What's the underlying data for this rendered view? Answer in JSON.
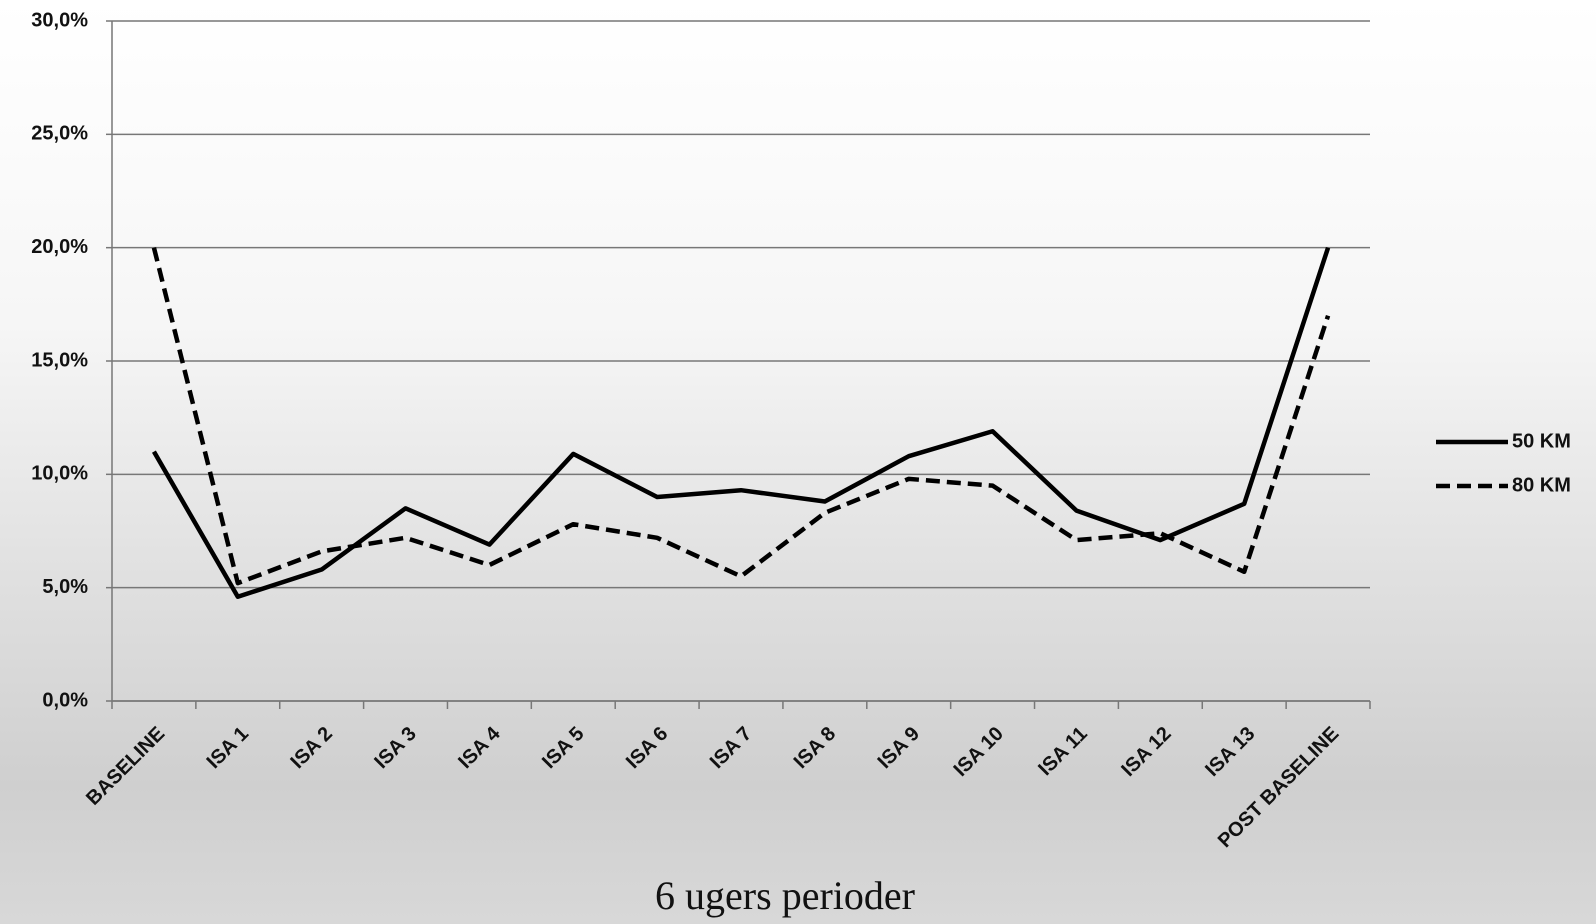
{
  "chart_data": {
    "type": "line",
    "x_label": "6 ugers perioder",
    "categories": [
      "BASELINE",
      "ISA 1",
      "ISA 2",
      "ISA 3",
      "ISA 4",
      "ISA 5",
      "ISA 6",
      "ISA 7",
      "ISA 8",
      "ISA 9",
      "ISA 10",
      "ISA 11",
      "ISA 12",
      "ISA 13",
      "POST BASELINE"
    ],
    "series": [
      {
        "name": "50 KM",
        "color": "#000000",
        "line_style": "solid",
        "values": [
          11.0,
          4.6,
          5.8,
          8.5,
          6.9,
          10.9,
          9.0,
          9.3,
          8.8,
          10.8,
          11.9,
          8.4,
          7.1,
          8.7,
          20.0
        ]
      },
      {
        "name": "80 KM",
        "color": "#000000",
        "line_style": "dashed",
        "values": [
          20.0,
          5.2,
          6.6,
          7.2,
          6.0,
          7.8,
          7.2,
          5.5,
          8.3,
          9.8,
          9.5,
          7.1,
          7.4,
          5.7,
          17.0
        ]
      }
    ],
    "ylim": [
      0,
      30
    ],
    "yticks": [
      {
        "value": 0,
        "label": "0,0%"
      },
      {
        "value": 5,
        "label": "5,0%"
      },
      {
        "value": 10,
        "label": "10,0%"
      },
      {
        "value": 15,
        "label": "15,0%"
      },
      {
        "value": 20,
        "label": "20,0%"
      },
      {
        "value": 25,
        "label": "25,0%"
      },
      {
        "value": 30,
        "label": "30,0%"
      }
    ],
    "grid": true,
    "legend": "right"
  }
}
